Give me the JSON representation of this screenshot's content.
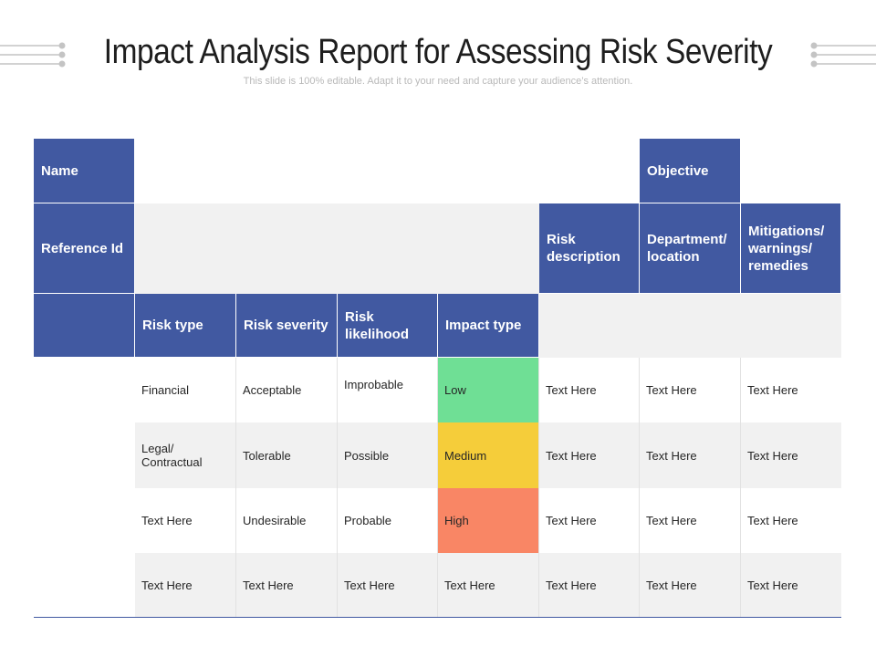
{
  "title": "Impact Analysis Report for Assessing Risk Severity",
  "subtitle": "This slide is 100% editable. Adapt it to your need and capture your audience’s attention.",
  "headers": {
    "name": "Name",
    "objective": "Objective",
    "reference_id": "Reference Id",
    "risk_description": "Risk description",
    "department_location": "Department/ location",
    "mitigations": "Mitigations/ warnings/ remedies",
    "risk_type": "Risk type",
    "risk_severity": "Risk severity",
    "risk_likelihood": "Risk likelihood",
    "impact_type": "Impact type"
  },
  "rows": [
    {
      "risk_type": "Financial",
      "risk_severity": "Acceptable",
      "risk_likelihood": "Improbable",
      "impact_type": "Low",
      "risk_description": "Text Here",
      "department_location": "Text Here",
      "mitigations": "Text Here"
    },
    {
      "risk_type": "Legal/ Contractual",
      "risk_severity": "Tolerable",
      "risk_likelihood": "Possible",
      "impact_type": "Medium",
      "risk_description": "Text Here",
      "department_location": "Text Here",
      "mitigations": "Text Here"
    },
    {
      "risk_type": "Text Here",
      "risk_severity": "Undesirable",
      "risk_likelihood": "Probable",
      "impact_type": "High",
      "risk_description": "Text Here",
      "department_location": "Text Here",
      "mitigations": "Text Here"
    },
    {
      "risk_type": "Text Here",
      "risk_severity": "Text Here",
      "risk_likelihood": "Text Here",
      "impact_type": "Text Here",
      "risk_description": "Text Here",
      "department_location": "Text Here",
      "mitigations": "Text Here"
    }
  ],
  "colors": {
    "header_blue": "#4159a1",
    "impact_low": "#6fdf95",
    "impact_medium": "#f5cd3a",
    "impact_high": "#f98665"
  }
}
